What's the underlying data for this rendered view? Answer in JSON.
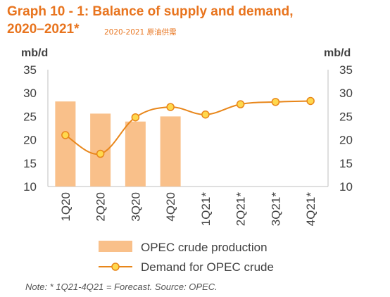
{
  "header": {
    "title_line1": "Graph 10 - 1: Balance of supply and demand,",
    "title_line2": "2020–2021*",
    "subtitle": "2020-2021 原油供需"
  },
  "note": "Note: * 1Q21-4Q21 = Forecast. Source: OPEC.",
  "chart_data": {
    "type": "bar",
    "categories": [
      "1Q20",
      "2Q20",
      "3Q20",
      "4Q20",
      "1Q21*",
      "2Q21*",
      "3Q21*",
      "4Q21*"
    ],
    "series": [
      {
        "name": "OPEC crude production",
        "type": "bar",
        "values": [
          28.2,
          25.6,
          23.9,
          25.0,
          null,
          null,
          null,
          null
        ]
      },
      {
        "name": "Demand for OPEC crude",
        "type": "line",
        "values": [
          21.0,
          17.0,
          24.8,
          27.0,
          25.4,
          27.6,
          28.1,
          28.3
        ]
      }
    ],
    "ylabel_left": "mb/d",
    "ylabel_right": "mb/d",
    "ylim": [
      10,
      35
    ],
    "yticks": [
      10,
      15,
      20,
      25,
      30,
      35
    ],
    "grid": false,
    "legend_position": "bottom",
    "colors": {
      "bar": "#F9C08A",
      "line": "#E8861A",
      "marker_fill": "#FFD84D",
      "axis": "#BFBFBF",
      "text": "#404040"
    }
  }
}
